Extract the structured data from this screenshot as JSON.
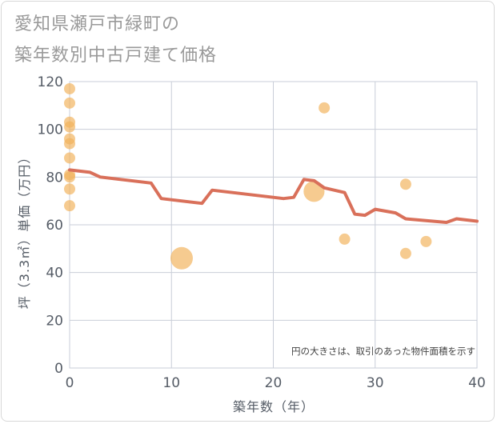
{
  "title_line1": "愛知県瀬戸市緑町の",
  "title_line2": "築年数別中古戸建て価格",
  "chart_data": {
    "type": "scatter",
    "xlabel": "築年数（年）",
    "ylabel": "坪（3.3㎡）単価（万円）",
    "xlim": [
      0,
      40
    ],
    "ylim": [
      0,
      120
    ],
    "x_ticks": [
      0,
      10,
      20,
      30,
      40
    ],
    "y_ticks": [
      0,
      20,
      40,
      60,
      80,
      100,
      120
    ],
    "grid": true,
    "note": "円の大きさは、取引のあった物件面積を示す",
    "colors": {
      "bubble": "#f2b25c",
      "line": "#d9705a",
      "grid": "#c9ced8"
    },
    "bubbles": [
      {
        "x": 0,
        "y": 117,
        "size": 1
      },
      {
        "x": 0,
        "y": 111,
        "size": 1
      },
      {
        "x": 0,
        "y": 103,
        "size": 1
      },
      {
        "x": 0,
        "y": 101,
        "size": 1
      },
      {
        "x": 0,
        "y": 96,
        "size": 1
      },
      {
        "x": 0,
        "y": 94,
        "size": 1
      },
      {
        "x": 0,
        "y": 88,
        "size": 1
      },
      {
        "x": 0,
        "y": 81,
        "size": 1
      },
      {
        "x": 0,
        "y": 80,
        "size": 1
      },
      {
        "x": 0,
        "y": 75,
        "size": 1
      },
      {
        "x": 0,
        "y": 68,
        "size": 1
      },
      {
        "x": 11,
        "y": 46,
        "size": 4
      },
      {
        "x": 24,
        "y": 74,
        "size": 3.5
      },
      {
        "x": 25,
        "y": 109,
        "size": 1
      },
      {
        "x": 27,
        "y": 54,
        "size": 1
      },
      {
        "x": 33,
        "y": 77,
        "size": 1
      },
      {
        "x": 33,
        "y": 48,
        "size": 1
      },
      {
        "x": 35,
        "y": 53,
        "size": 1
      }
    ],
    "series": [
      {
        "x": [
          0,
          2,
          3,
          8,
          9,
          13,
          14,
          21,
          22,
          23,
          24,
          25,
          27,
          28,
          29,
          30,
          32,
          33,
          37,
          38,
          40
        ],
        "values": [
          83,
          82,
          80,
          77.5,
          71,
          69,
          74.5,
          71,
          71.5,
          79,
          78.5,
          75.5,
          73.5,
          64.5,
          64,
          66.5,
          65,
          62.5,
          61,
          62.5,
          61.5
        ]
      }
    ]
  }
}
